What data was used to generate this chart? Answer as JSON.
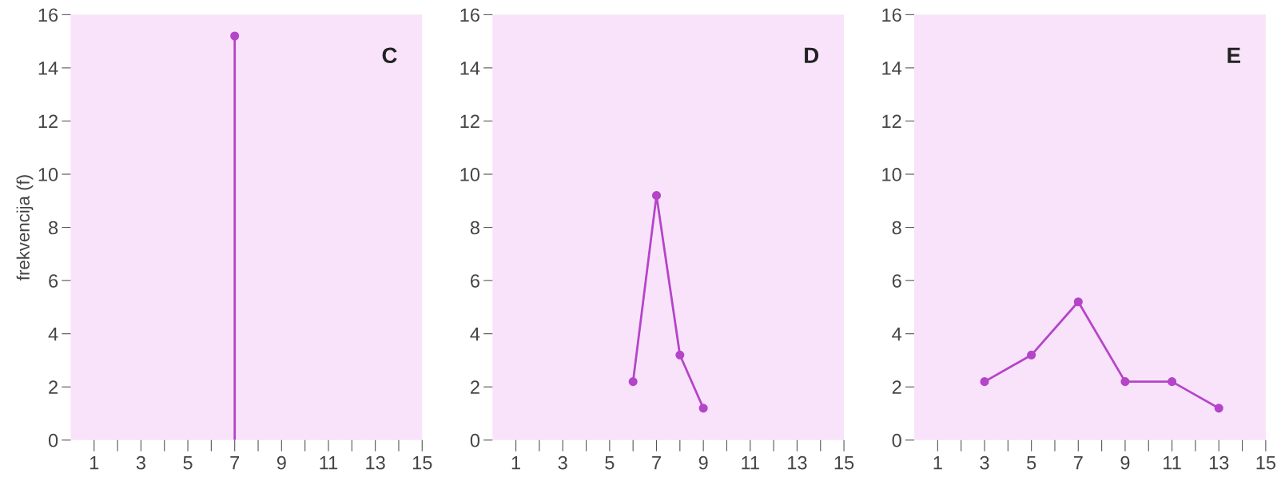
{
  "chart_data": [
    {
      "type": "lollipop",
      "title": "C",
      "ylabel": "frekvencija (f)",
      "x": [
        7
      ],
      "values": [
        15.2
      ],
      "color": "#b545c8",
      "marker": "circle",
      "xlim": [
        0,
        15
      ],
      "ylim": [
        0,
        16
      ],
      "yticks": [
        0,
        2,
        4,
        6,
        8,
        10,
        12,
        14,
        16
      ],
      "xticks": [
        {
          "value": 1,
          "label": "1"
        },
        {
          "value": 2,
          "label": null
        },
        {
          "value": 3,
          "label": "3"
        },
        {
          "value": 4,
          "label": null
        },
        {
          "value": 5,
          "label": "5"
        },
        {
          "value": 6,
          "label": null
        },
        {
          "value": 7,
          "label": "7"
        },
        {
          "value": 8,
          "label": null
        },
        {
          "value": 9,
          "label": "9"
        },
        {
          "value": 10,
          "label": null
        },
        {
          "value": 11,
          "label": "11"
        },
        {
          "value": 12,
          "label": null
        },
        {
          "value": 13,
          "label": "13"
        },
        {
          "value": 14,
          "label": null
        },
        {
          "value": 15,
          "label": "15"
        }
      ],
      "grid": false,
      "legend": false
    },
    {
      "type": "line",
      "title": "D",
      "x": [
        6,
        7,
        8,
        9
      ],
      "values": [
        2.2,
        9.2,
        3.2,
        1.2
      ],
      "color": "#b545c8",
      "marker": "circle",
      "xlim": [
        0,
        15
      ],
      "ylim": [
        0,
        16
      ],
      "yticks": [
        0,
        2,
        4,
        6,
        8,
        10,
        12,
        14,
        16
      ],
      "xticks": [
        {
          "value": 1,
          "label": "1"
        },
        {
          "value": 2,
          "label": null
        },
        {
          "value": 3,
          "label": "3"
        },
        {
          "value": 4,
          "label": null
        },
        {
          "value": 5,
          "label": "5"
        },
        {
          "value": 6,
          "label": null
        },
        {
          "value": 7,
          "label": "7"
        },
        {
          "value": 8,
          "label": null
        },
        {
          "value": 9,
          "label": "9"
        },
        {
          "value": 10,
          "label": null
        },
        {
          "value": 11,
          "label": "11"
        },
        {
          "value": 12,
          "label": null
        },
        {
          "value": 13,
          "label": "13"
        },
        {
          "value": 14,
          "label": null
        },
        {
          "value": 15,
          "label": "15"
        }
      ],
      "grid": false,
      "legend": false
    },
    {
      "type": "line",
      "title": "E",
      "x": [
        3,
        5,
        7,
        9,
        11,
        13
      ],
      "values": [
        2.2,
        3.2,
        5.2,
        2.2,
        2.2,
        1.2
      ],
      "color": "#b545c8",
      "marker": "circle",
      "xlim": [
        0,
        15
      ],
      "ylim": [
        0,
        16
      ],
      "yticks": [
        0,
        2,
        4,
        6,
        8,
        10,
        12,
        14,
        16
      ],
      "xticks": [
        {
          "value": 1,
          "label": "1"
        },
        {
          "value": 2,
          "label": null
        },
        {
          "value": 3,
          "label": "3"
        },
        {
          "value": 4,
          "label": null
        },
        {
          "value": 5,
          "label": "5"
        },
        {
          "value": 6,
          "label": null
        },
        {
          "value": 7,
          "label": "7"
        },
        {
          "value": 8,
          "label": null
        },
        {
          "value": 9,
          "label": "9"
        },
        {
          "value": 10,
          "label": null
        },
        {
          "value": 11,
          "label": "11"
        },
        {
          "value": 12,
          "label": null
        },
        {
          "value": 13,
          "label": "13"
        },
        {
          "value": 14,
          "label": null
        },
        {
          "value": 15,
          "label": "15"
        }
      ],
      "grid": false,
      "legend": false
    }
  ]
}
